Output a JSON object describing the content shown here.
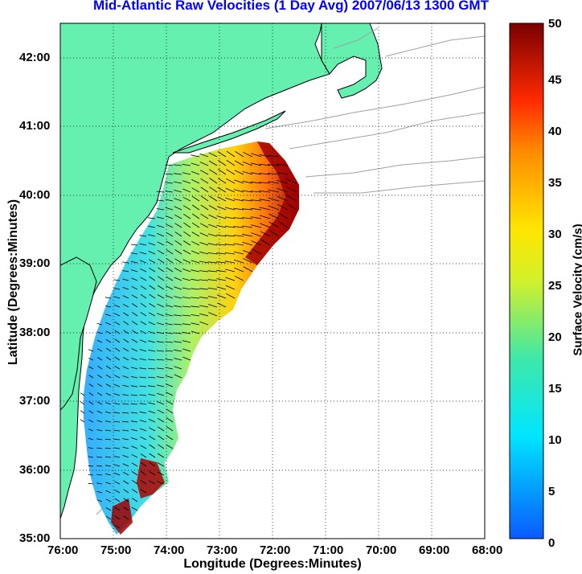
{
  "title": "Mid-Atlantic Raw Velocities (1 Day Avg) 2007/06/13 1300 GMT",
  "xlabel": "Longitude (Degrees:Minutes)",
  "ylabel": "Latitude (Degrees:Minutes)",
  "colorbar": {
    "label": "Surface Velocity (cm/s)",
    "range": [
      0,
      50
    ],
    "ticks": [
      "0",
      "5",
      "10",
      "15",
      "20",
      "25",
      "30",
      "35",
      "40",
      "45",
      "50"
    ],
    "colormap": "jet"
  },
  "map": {
    "land_color": "#66f0b0",
    "coast_color": "#000000",
    "bathymetry_color": "#a0a0a0",
    "grid": "dotted",
    "lon_range": [
      -76,
      -68
    ],
    "lat_range": [
      35,
      42.5
    ],
    "x_ticks": [
      "76:00",
      "75:00",
      "74:00",
      "73:00",
      "72:00",
      "71:00",
      "70:00",
      "69:00",
      "68:00"
    ],
    "y_ticks": [
      "35:00",
      "36:00",
      "37:00",
      "38:00",
      "39:00",
      "40:00",
      "41:00",
      "42:00"
    ],
    "velocity_field": {
      "units": "cm/s",
      "dominant_direction": "westward / southwestward",
      "max_region": "eastern edge near shelf break (~45-50 cm/s)",
      "min_region": "near coast (~5-12 cm/s)"
    }
  }
}
